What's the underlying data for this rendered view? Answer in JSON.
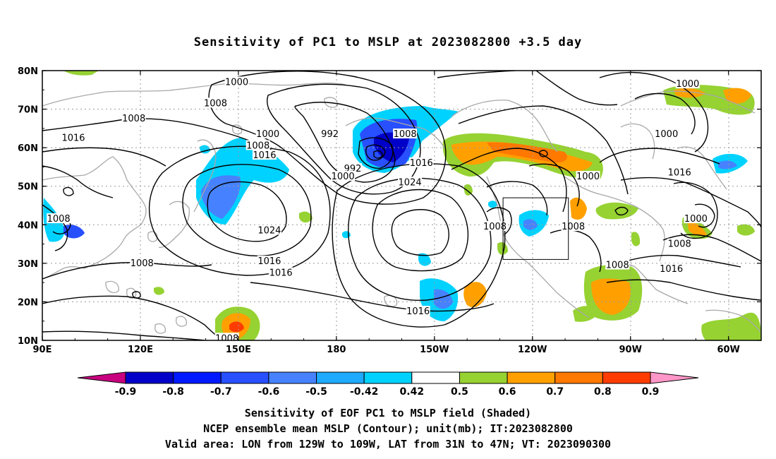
{
  "title": "Sensitivity of PC1 to MSLP at 2023082800 +3.5 day",
  "map": {
    "lat_ticks": [
      "80N",
      "70N",
      "60N",
      "50N",
      "40N",
      "30N",
      "20N",
      "10N"
    ],
    "lon_ticks": [
      "90E",
      "120E",
      "150E",
      "180",
      "150W",
      "120W",
      "90W",
      "60W"
    ],
    "lon_range": [
      90,
      310
    ],
    "lat_range": [
      10,
      80
    ],
    "valid_area_box": {
      "lon": [
        231,
        251
      ],
      "lat": [
        31,
        47
      ]
    },
    "contour_labels": [
      {
        "text": "1000",
        "lon": 149.5,
        "lat": 77
      },
      {
        "text": "1000",
        "lon": 287.5,
        "lat": 76.5
      },
      {
        "text": "1008",
        "lon": 143,
        "lat": 71.5
      },
      {
        "text": "1008",
        "lon": 118,
        "lat": 67.5
      },
      {
        "text": "992",
        "lon": 178,
        "lat": 63.5
      },
      {
        "text": "1016",
        "lon": 99.5,
        "lat": 62.5
      },
      {
        "text": "1000",
        "lon": 159,
        "lat": 63.5
      },
      {
        "text": "1008",
        "lon": 201,
        "lat": 63.5
      },
      {
        "text": "1000",
        "lon": 281,
        "lat": 63.5
      },
      {
        "text": "1008",
        "lon": 156,
        "lat": 60.5
      },
      {
        "text": "1016",
        "lon": 158,
        "lat": 58
      },
      {
        "text": "1016",
        "lon": 206,
        "lat": 56
      },
      {
        "text": "992",
        "lon": 185,
        "lat": 54.5
      },
      {
        "text": "1000",
        "lon": 182,
        "lat": 52.5
      },
      {
        "text": "1024",
        "lon": 202.5,
        "lat": 51
      },
      {
        "text": "1000",
        "lon": 257,
        "lat": 52.5
      },
      {
        "text": "1016",
        "lon": 285,
        "lat": 53.5
      },
      {
        "text": "1008",
        "lon": 95,
        "lat": 41.5
      },
      {
        "text": "1024",
        "lon": 159.5,
        "lat": 38.5
      },
      {
        "text": "1008",
        "lon": 228.5,
        "lat": 39.5
      },
      {
        "text": "1008",
        "lon": 252.5,
        "lat": 39.5
      },
      {
        "text": "1000",
        "lon": 290,
        "lat": 41.5
      },
      {
        "text": "1008",
        "lon": 285,
        "lat": 35
      },
      {
        "text": "1008",
        "lon": 120.5,
        "lat": 30
      },
      {
        "text": "1016",
        "lon": 159.5,
        "lat": 30.5
      },
      {
        "text": "1016",
        "lon": 163,
        "lat": 27.5
      },
      {
        "text": "1008",
        "lon": 266,
        "lat": 29.5
      },
      {
        "text": "1016",
        "lon": 282.5,
        "lat": 28.5
      },
      {
        "text": "1016",
        "lon": 205,
        "lat": 17.5
      },
      {
        "text": "1008",
        "lon": 146.5,
        "lat": 10.5
      }
    ]
  },
  "colorbar": {
    "labels": [
      "-0.9",
      "-0.8",
      "-0.7",
      "-0.6",
      "-0.5",
      "-0.42",
      "0.42",
      "0.5",
      "0.6",
      "0.7",
      "0.8",
      "0.9"
    ],
    "colors": [
      "#0000c8",
      "#0019ff",
      "#2850ff",
      "#4682ff",
      "#1eaaff",
      "#00d2ff",
      "#ffffff",
      "#96d232",
      "#ffa000",
      "#ff7800",
      "#ff3c00",
      "#ff0000",
      "#ff96c8"
    ],
    "low_color": "#c8007f",
    "high_color": "#ff96c8"
  },
  "captions": {
    "line1": "Sensitivity of EOF PC1 to MSLP field (Shaded)",
    "line2": "NCEP ensemble mean MSLP (Contour); unit(mb); IT:2023082800",
    "line3": "Valid area: LON from 129W to 109W, LAT from 31N to 47N; VT: 2023090300"
  }
}
